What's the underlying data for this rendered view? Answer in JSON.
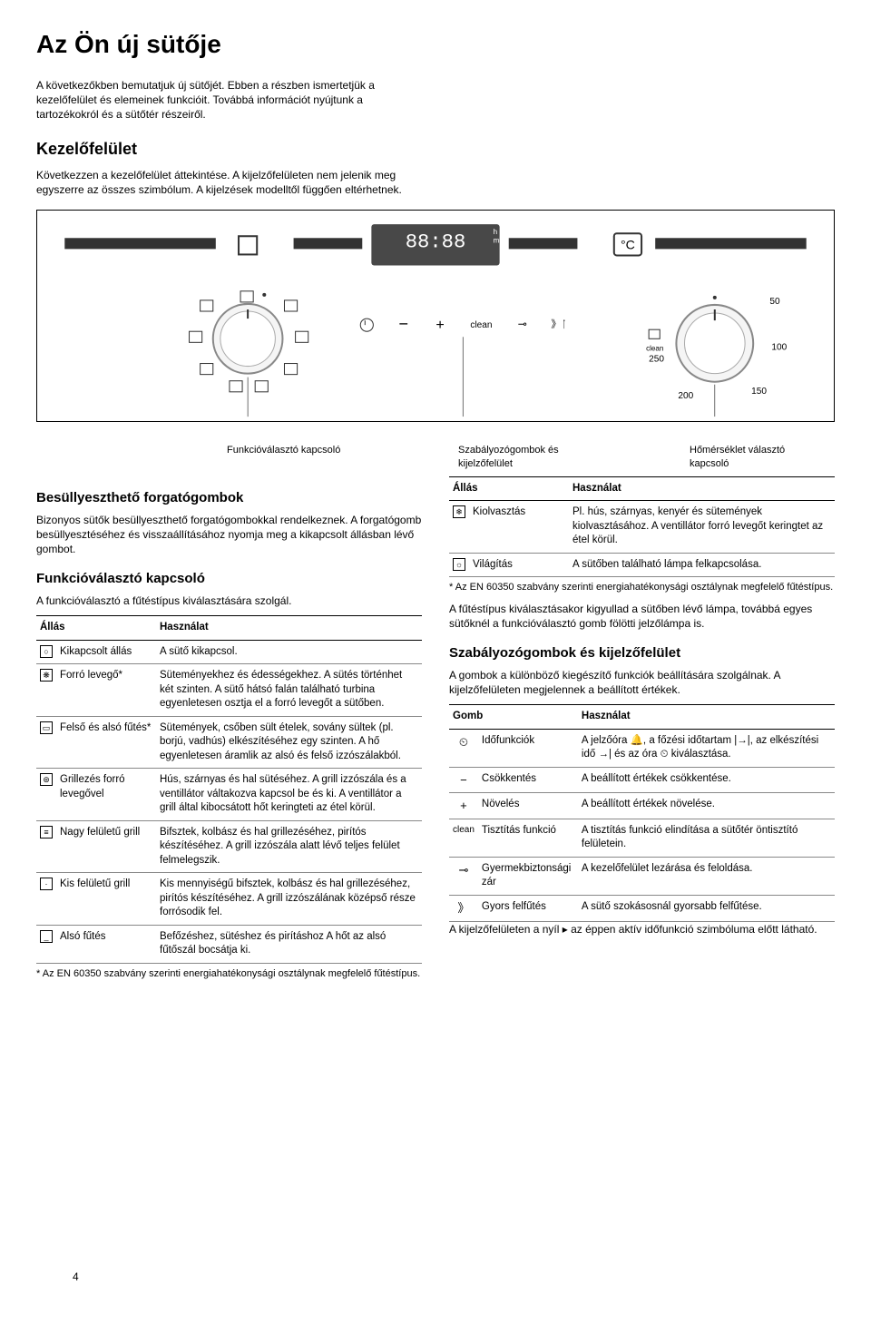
{
  "page_number": "4",
  "title": "Az Ön új sütője",
  "intro_p1": "A következőkben bemutatjuk új sütőjét. Ebben a részben ismertetjük a kezelőfelület és elemeinek funkcióit. Továbbá információt nyújtunk a tartozékokról és a sütőtér részeiről.",
  "section_kezelo": {
    "heading": "Kezelőfelület",
    "p1": "Következzen a kezelőfelület áttekintése. A kijelzőfelületen nem jelenik meg egyszerre az összes szimbólum. A kijelzések modelltől függően eltérhetnek."
  },
  "diagram": {
    "labels": {
      "funkcio": "Funkcióválasztó kapcsoló",
      "szabalyozo": "Szabályozógombok és kijelzőfelület",
      "homerseklet": "Hőmérséklet választó kapcsoló"
    },
    "display_text_h": "h",
    "display_text_min": "min",
    "display_digits": "88:88",
    "display_c": "°C",
    "button_clean": "clean",
    "dial_clean": "clean",
    "dial_250": "250",
    "dial_200": "200",
    "dial_150": "150",
    "dial_100": "100",
    "dial_50": "50"
  },
  "besullyeszt": {
    "heading": "Besüllyeszthető forgatógombok",
    "p1": "Bizonyos sütők besüllyeszthető forgatógombokkal rendelkeznek. A forgatógomb besüllyesztéséhez és visszaállításához nyomja meg a kikapcsolt állásban lévő gombot."
  },
  "funkcio": {
    "heading": "Funkcióválasztó kapcsoló",
    "p1": "A funkcióválasztó a fűtéstípus kiválasztására szolgál.",
    "th_allas": "Állás",
    "th_hasznalat": "Használat",
    "rows": [
      {
        "icon": "○",
        "name": "Kikapcsolt állás",
        "desc": "A sütő kikapcsol."
      },
      {
        "icon": "❋",
        "name": "Forró levegő*",
        "desc": "Süteményekhez és édességekhez. A sütés történhet két szinten. A sütő hátsó falán található turbina egyenletesen osztja el a forró levegőt a sütőben."
      },
      {
        "icon": "▭",
        "name": "Felső és alsó fűtés*",
        "desc": "Sütemények, csőben sült ételek, sovány sültek (pl. borjú, vadhús) elkészítéséhez egy szinten. A hő egyenletesen áramlik az alsó és felső izzószálakból."
      },
      {
        "icon": "⊛",
        "name": "Grillezés forró levegővel",
        "desc": "Hús, szárnyas és hal sütéséhez. A grill izzószála és a ventillátor váltakozva kapcsol be és ki. A ventillátor a grill által kibocsátott hőt keringteti az étel körül."
      },
      {
        "icon": "≡",
        "name": "Nagy felületű grill",
        "desc": "Bifsztek, kolbász és hal grillezéséhez, pirítós készítéséhez. A grill izzószála alatt lévő teljes felület felmelegszik."
      },
      {
        "icon": "·",
        "name": "Kis felületű grill",
        "desc": "Kis mennyiségű bifsztek, kolbász és hal grillezéséhez, pirítós készítéséhez. A grill izzószálának középső része forrósodik fel."
      },
      {
        "icon": "_",
        "name": "Alsó fűtés",
        "desc": "Befőzéshez, sütéshez és pirításhoz A hőt az alsó fűtőszál bocsátja ki."
      }
    ],
    "footnote": "* Az EN 60350 szabvány szerinti energiahatékonysági osztálynak megfelelő fűtéstípus."
  },
  "funkcio2": {
    "th_allas": "Állás",
    "th_hasznalat": "Használat",
    "rows": [
      {
        "icon": "❄",
        "name": "Kiolvasztás",
        "desc": "Pl. hús, szárnyas, kenyér és sütemények kiolvasztásához. A ventillátor forró levegőt keringtet az étel körül."
      },
      {
        "icon": "☼",
        "name": "Világítás",
        "desc": "A sütőben található lámpa felkapcsolása."
      }
    ],
    "footnote": "* Az EN 60350 szabvány szerinti energiahatékonysági osztálynak megfelelő fűtéstípus.",
    "p_after": "A fűtéstípus kiválasztásakor kigyullad a sütőben lévő lámpa, továbbá egyes sütőknél a funkcióválasztó gomb fölötti jelzőlámpa is."
  },
  "szabalyozo": {
    "heading": "Szabályozógombok és kijelzőfelület",
    "p1": "A gombok a különböző kiegészítő funkciók beállítására szolgálnak. A kijelzőfelületen megjelennek a beállított értékek.",
    "th_gomb": "Gomb",
    "th_hasznalat": "Használat",
    "rows": [
      {
        "icon": "⏲",
        "name": "Időfunkciók",
        "desc": "A jelzőóra 🔔, a főzési időtartam |→|, az elkészítési idő →| és az óra ⏲ kiválasztása."
      },
      {
        "icon": "−",
        "name": "Csökkentés",
        "desc": "A beállított értékek csökkentése."
      },
      {
        "icon": "+",
        "name": "Növelés",
        "desc": "A beállított értékek növelése."
      },
      {
        "icon": "clean",
        "name": "Tisztítás funkció",
        "desc": "A tisztítás funkció elindítása a sütőtér öntisztító felületein."
      },
      {
        "icon": "⊸",
        "name": "Gyermekbiztonsági zár",
        "desc": "A kezelőfelület lezárása és feloldása."
      },
      {
        "icon": "》",
        "name": "Gyors felfűtés",
        "desc": "A sütő szokásosnál gyorsabb felfűtése."
      }
    ],
    "p_after": "A kijelzőfelületen a nyíl ▸ az éppen aktív időfunkció szimbóluma előtt látható."
  }
}
